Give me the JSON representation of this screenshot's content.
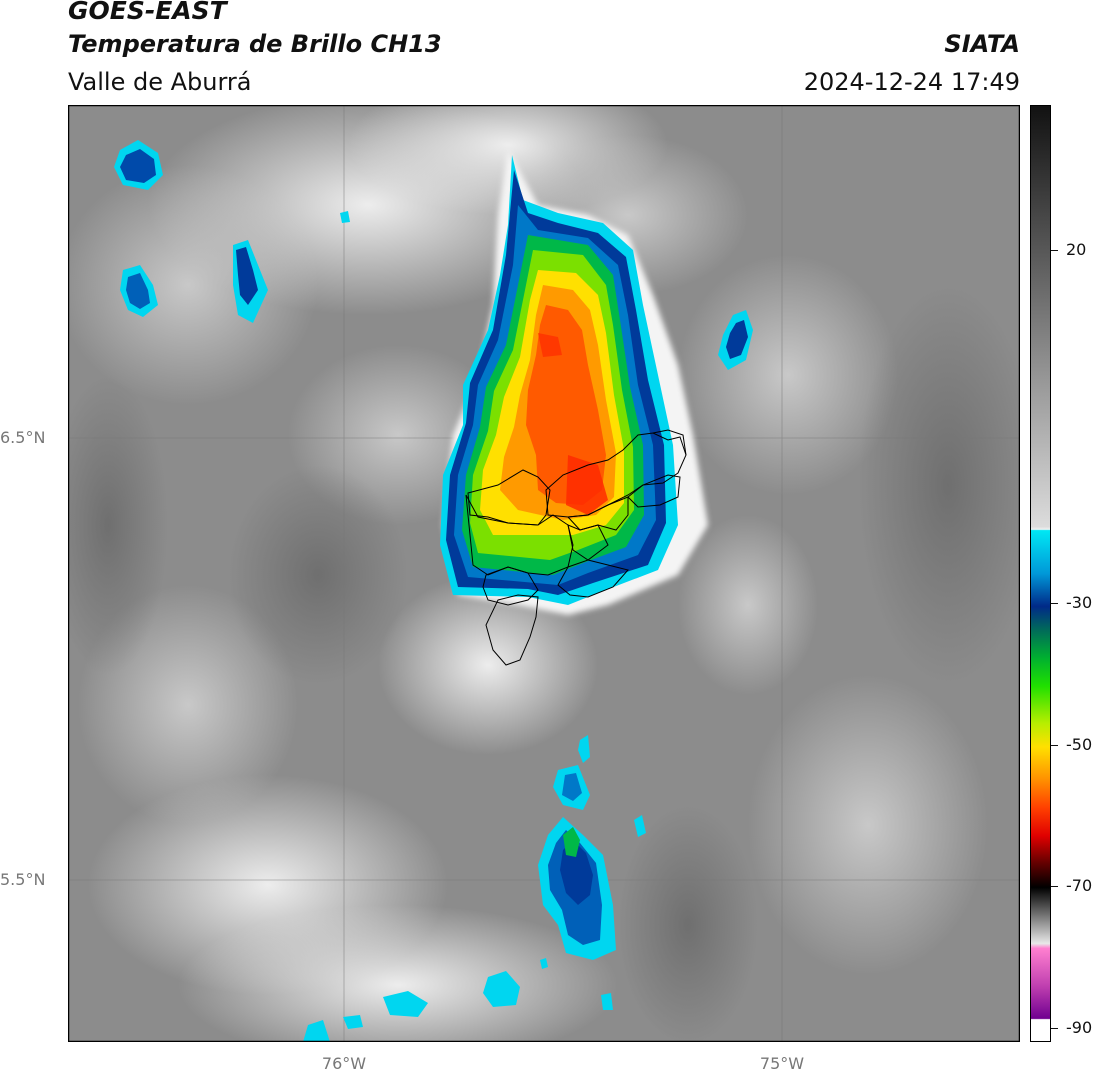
{
  "header": {
    "satellite": "GOES-EAST",
    "product": "Temperatura de Brillo CH13",
    "region": "Valle de Aburrá",
    "org": "SIATA",
    "timestamp": "2024-12-24 17:49"
  },
  "axes": {
    "lat_labels": [
      "6.5°N",
      "5.5°N"
    ],
    "lon_labels": [
      "76°W",
      "75°W"
    ]
  },
  "colorbar": {
    "ticks": [
      "20",
      "-30",
      "-50",
      "-70",
      "-90"
    ]
  },
  "colors": {
    "cloud_top_min": "#6a0d80",
    "storm_core": "#ff5a00",
    "storm_mid": "#00d020",
    "storm_edge": "#00dcf0",
    "background_gray": "#8a8a8a"
  }
}
